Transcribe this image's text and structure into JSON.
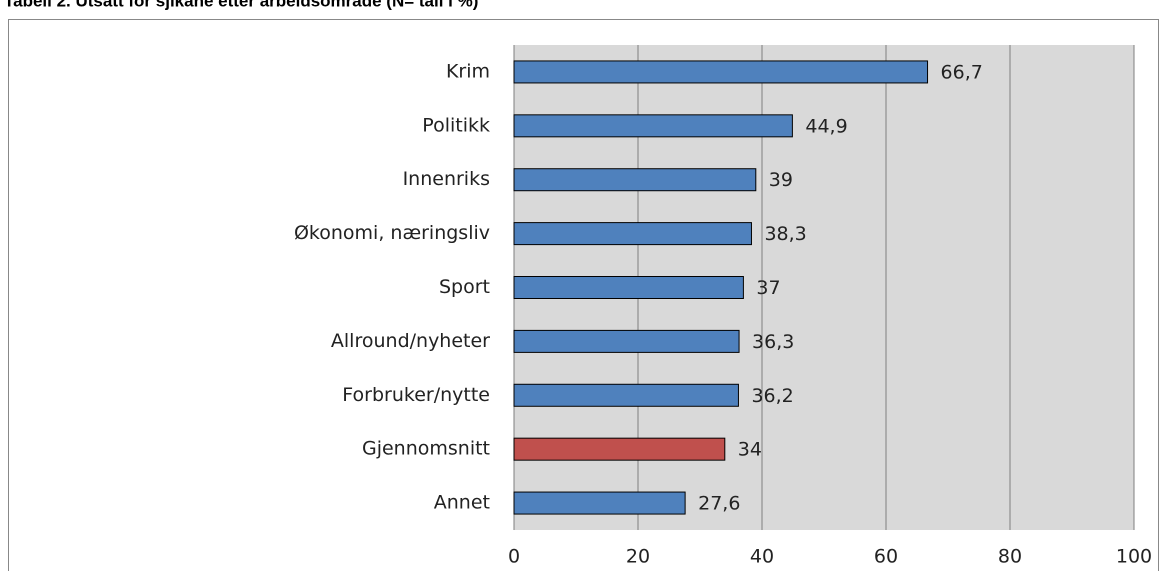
{
  "chart_data": {
    "type": "bar",
    "orientation": "horizontal",
    "title": "Tabell 2. Utsatt for sjikane etter arbeidsområde (N= tall i %)",
    "categories": [
      "Krim",
      "Politikk",
      "Innenriks",
      "Økonomi, næringsliv",
      "Sport",
      "Allround/nyheter",
      "Forbruker/nytte",
      "Gjennomsnitt",
      "Annet"
    ],
    "values": [
      66.7,
      44.9,
      39,
      38.3,
      37,
      36.3,
      36.2,
      34,
      27.6
    ],
    "value_labels": [
      "66,7",
      "44,9",
      "39",
      "38,3",
      "37",
      "36,3",
      "36,2",
      "34",
      "27,6"
    ],
    "colors": [
      "#4f81bd",
      "#4f81bd",
      "#4f81bd",
      "#4f81bd",
      "#4f81bd",
      "#4f81bd",
      "#4f81bd",
      "#c0504d",
      "#4f81bd"
    ],
    "xlim": [
      0,
      100
    ],
    "xticks": [
      0,
      20,
      40,
      60,
      80,
      100
    ],
    "grid": true
  }
}
